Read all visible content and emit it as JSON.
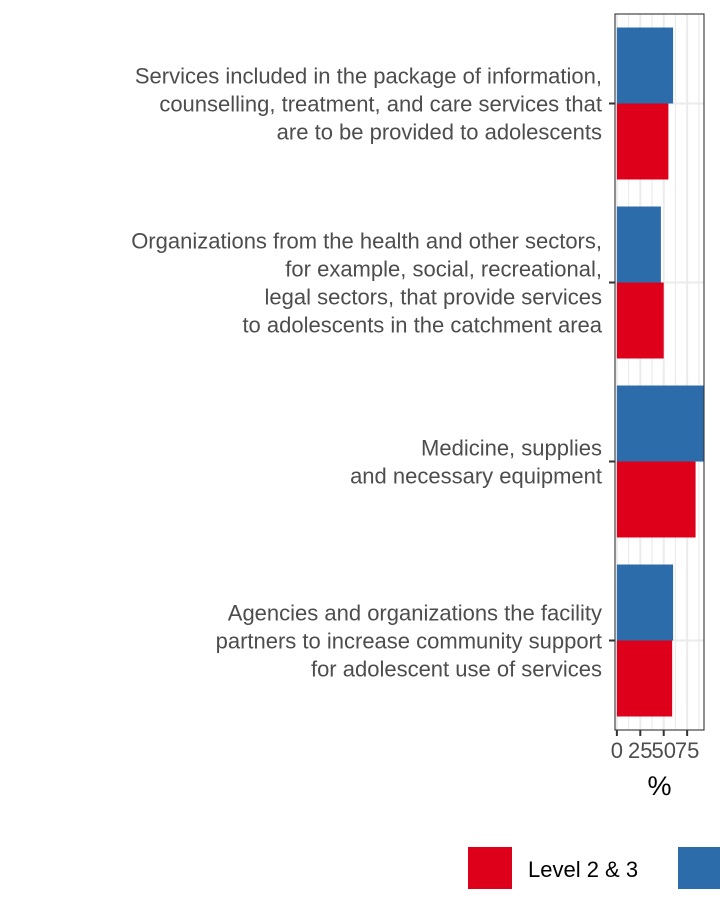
{
  "chart_data": {
    "type": "bar",
    "orientation": "horizontal",
    "xlabel": "%",
    "ylabel": "",
    "xlim": [
      -2,
      93
    ],
    "xticks": [
      0,
      25,
      50,
      75
    ],
    "xtick_labels": [
      "0",
      "25",
      "50",
      "75"
    ],
    "grid": true,
    "legend_position": "bottom",
    "categories": [
      [
        "Services included in the package of information,",
        "counselling, treatment, and care services that",
        "are to be provided to adolescents"
      ],
      [
        "Organizations from the health and other sectors,",
        "for example, social, recreational,",
        "legal sectors, that provide services",
        "to adolescents in the catchment area"
      ],
      [
        "Medicine, supplies",
        "and necessary equipment"
      ],
      [
        "Agencies and organizations the facility",
        "partners to increase community support",
        "for adolescent use of services"
      ]
    ],
    "series": [
      {
        "name": "Level 2 & 3",
        "color": "#de001a",
        "values": [
          55,
          50,
          84,
          59
        ]
      },
      {
        "name": "",
        "color": "#2c6cab",
        "values": [
          60,
          47,
          93,
          60
        ]
      }
    ]
  }
}
